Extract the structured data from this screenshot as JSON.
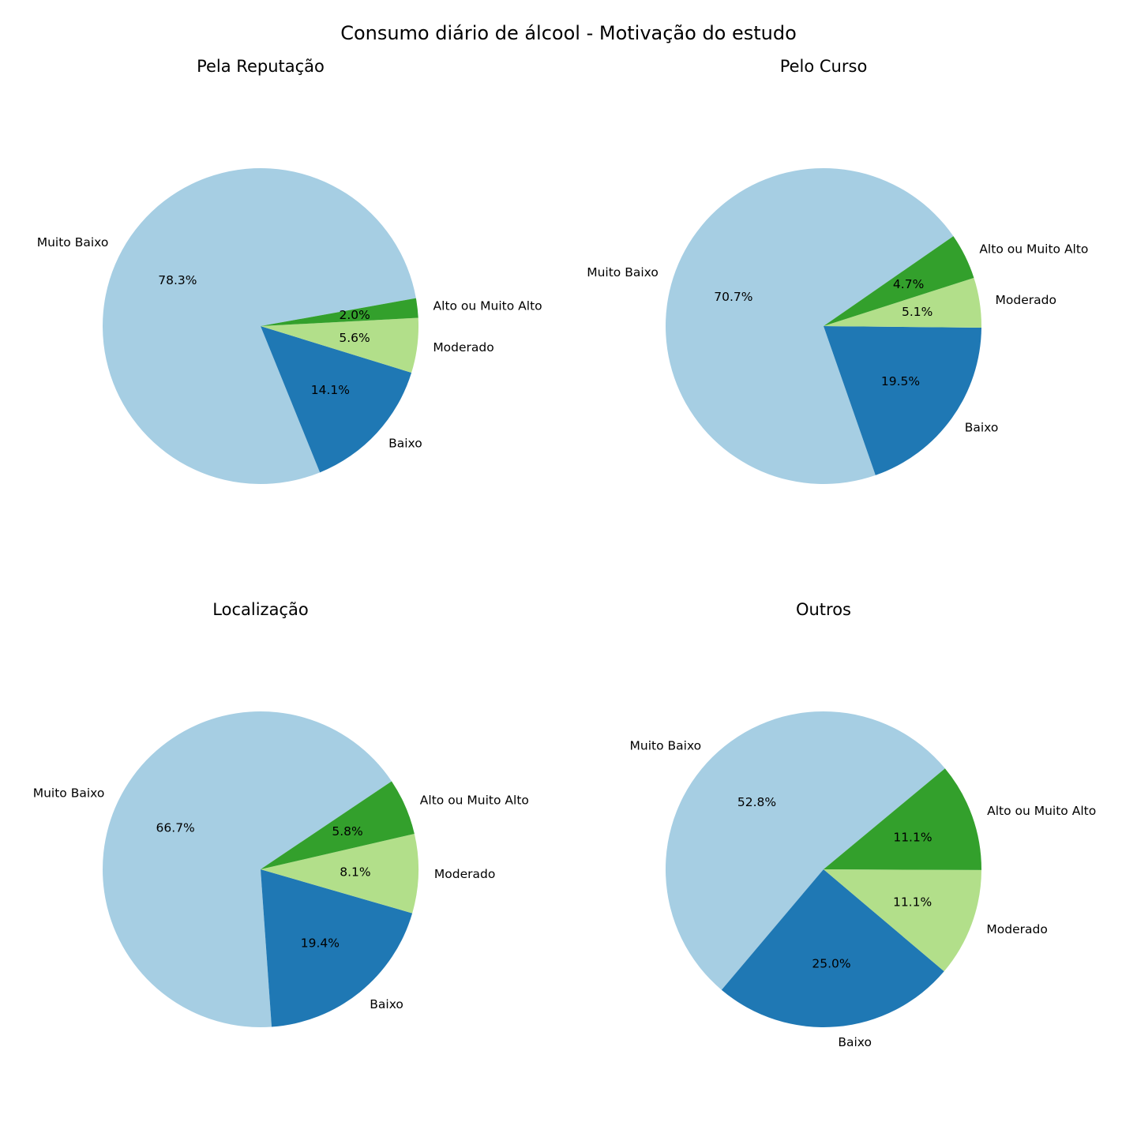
{
  "figure": {
    "title": "Consumo diário de álcool - Motivação do estudo"
  },
  "chart_data": [
    {
      "type": "pie",
      "title": "Pela Reputação",
      "labels": [
        "Muito Baixo",
        "Baixo",
        "Moderado",
        "Alto ou Muito Alto"
      ],
      "values": [
        78.3,
        14.1,
        5.6,
        2.0
      ],
      "autopct": [
        "78.3%",
        "14.1%",
        "5.6%",
        "2.0%"
      ],
      "colors": [
        "#a6cee3",
        "#1f78b4",
        "#b2df8a",
        "#33a02c"
      ],
      "start_angle": 10.2,
      "direction": "counterclockwise"
    },
    {
      "type": "pie",
      "title": "Pelo Curso",
      "labels": [
        "Muito Baixo",
        "Baixo",
        "Moderado",
        "Alto ou Muito Alto"
      ],
      "values": [
        70.7,
        19.5,
        5.1,
        4.7
      ],
      "autopct": [
        "70.7%",
        "19.5%",
        "5.1%",
        "4.7%"
      ],
      "colors": [
        "#a6cee3",
        "#1f78b4",
        "#b2df8a",
        "#33a02c"
      ],
      "start_angle": 34.7,
      "direction": "counterclockwise"
    },
    {
      "type": "pie",
      "title": "Localização",
      "labels": [
        "Muito Baixo",
        "Baixo",
        "Moderado",
        "Alto ou Muito Alto"
      ],
      "values": [
        66.7,
        19.4,
        8.1,
        5.8
      ],
      "autopct": [
        "66.7%",
        "19.4%",
        "8.1%",
        "5.8%"
      ],
      "colors": [
        "#a6cee3",
        "#1f78b4",
        "#b2df8a",
        "#33a02c"
      ],
      "start_angle": 33.9,
      "direction": "counterclockwise"
    },
    {
      "type": "pie",
      "title": "Outros",
      "labels": [
        "Muito Baixo",
        "Baixo",
        "Moderado",
        "Alto ou Muito Alto"
      ],
      "values": [
        52.8,
        25.0,
        11.1,
        11.1
      ],
      "autopct": [
        "52.8%",
        "25.0%",
        "11.1%",
        "11.1%"
      ],
      "colors": [
        "#a6cee3",
        "#1f78b4",
        "#b2df8a",
        "#33a02c"
      ],
      "start_angle": 39.7,
      "direction": "counterclockwise"
    }
  ]
}
